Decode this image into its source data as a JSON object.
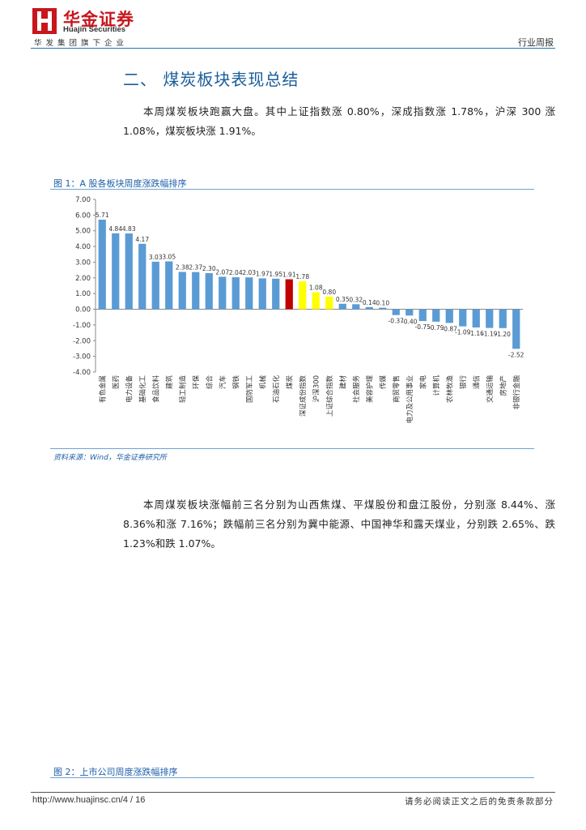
{
  "header": {
    "brand_cn": "华金证券",
    "brand_en": "Huajin Securities",
    "slogan": "华发集团旗下企业",
    "report_type": "行业周报"
  },
  "section": {
    "title": "二、 煤炭板块表现总结",
    "para1": "本周煤炭板块跑赢大盘。其中上证指数涨 0.80%，深成指数涨 1.78%，沪深 300 涨 1.08%，煤炭板块涨 1.91%。",
    "para2": "本周煤炭板块涨幅前三名分别为山西焦煤、平煤股份和盘江股份，分别涨 8.44%、涨 8.36%和涨 7.16%；跌幅前三名分别为冀中能源、中国神华和露天煤业，分别跌 2.65%、跌 1.23%和跌 1.07%。"
  },
  "figure1": {
    "title": "图 1：A 股各板块周度涨跌幅排序",
    "source": "资料来源：Wind，华金证券研究所"
  },
  "figure2": {
    "title": "图 2：上市公司周度涨跌幅排序"
  },
  "footer": {
    "url": "http://www.huajinsc.cn/4 / 16",
    "disclaimer": "请务必阅读正文之后的免责条款部分"
  },
  "colors": {
    "brand_red": "#c8161d",
    "bar_default": "#5b9bd5",
    "bar_coal": "#c00000",
    "bar_index": "#ffff00",
    "title_blue": "#1a5e9a"
  },
  "chart_data": {
    "type": "bar",
    "title": "",
    "xlabel": "",
    "ylabel": "",
    "ylim": [
      -4,
      7
    ],
    "yticks": [
      "7.00",
      "6.00",
      "5.00",
      "4.00",
      "3.00",
      "2.00",
      "1.00",
      "0.00",
      "-1.00",
      "-2.00",
      "-3.00",
      "-4.00"
    ],
    "grid": false,
    "categories": [
      "有色金属",
      "医药",
      "电力设备",
      "基础化工",
      "食品饮料",
      "建筑",
      "轻工制造",
      "环保",
      "综合",
      "汽车",
      "钢铁",
      "国防军工",
      "机械",
      "石油石化",
      "煤炭",
      "深证成份指数",
      "沪深300",
      "上证综合指数",
      "建材",
      "社会服务",
      "美容护理",
      "传媒",
      "商贸零售",
      "电力及公用事业",
      "家电",
      "计算机",
      "农林牧渔",
      "银行",
      "通信",
      "交通运输",
      "房地产",
      "非银行金融"
    ],
    "values": [
      5.71,
      4.84,
      4.83,
      4.17,
      3.03,
      3.05,
      2.38,
      2.37,
      2.3,
      2.07,
      2.04,
      2.03,
      1.97,
      1.95,
      1.91,
      1.78,
      1.08,
      0.8,
      0.35,
      0.32,
      0.14,
      0.1,
      -0.37,
      -0.4,
      -0.75,
      -0.79,
      -0.87,
      -1.09,
      -1.16,
      -1.19,
      -1.2,
      -2.52
    ],
    "labels": [
      "5.71",
      "4.84",
      "4.83",
      "4.17",
      "3.03",
      "3.05",
      "2.38",
      "2.37",
      "2.30",
      "2.07",
      "2.04",
      "2.03",
      "1.97",
      "1.95",
      "1.91",
      "1.78",
      "1.08",
      "0.80",
      "0.35",
      "0.32",
      "0.14",
      "0.10",
      "-0.37",
      "-0.40",
      "-0.75",
      "-0.79",
      "-0.87",
      "-1.09",
      "-1.16",
      "-1.19",
      "-1.20",
      "-2.52"
    ],
    "highlight": {
      "煤炭": "#c00000",
      "深证成份指数": "#ffff00",
      "沪深300": "#ffff00",
      "上证综合指数": "#ffff00"
    }
  }
}
